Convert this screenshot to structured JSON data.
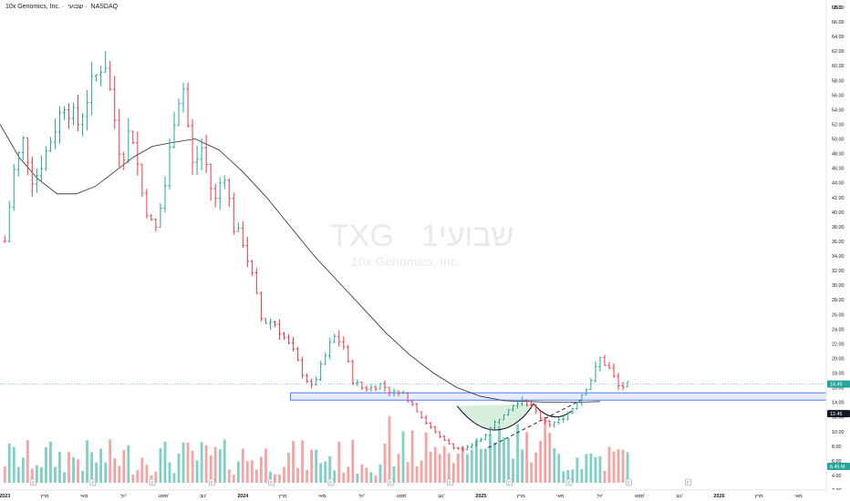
{
  "header": {
    "symbol_name": "10x Genomics, Inc.",
    "interval": "שבועי",
    "exchange": "NASDAQ"
  },
  "watermark": {
    "ticker": "TXG",
    "interval": "שבועי1",
    "company": "10x Genomics, Inc."
  },
  "axis": {
    "currency": "USD"
  },
  "colors": {
    "up": "#26a69a",
    "down": "#f23645",
    "vol_up": "#7fcfc5",
    "vol_down": "#f6a3a3",
    "ma": "#2b2b2b",
    "zone": "#2962ff",
    "pattern": "#8fd19e"
  },
  "chart_data": {
    "type": "ohlc",
    "yscale": "linear",
    "ylim": [
      2,
      68
    ],
    "y_ticks": [
      2,
      4,
      6,
      8,
      10,
      12,
      14,
      16,
      18,
      20,
      22,
      24,
      26,
      28,
      30,
      32,
      34,
      36,
      38,
      40,
      42,
      44,
      46,
      48,
      50,
      52,
      54,
      56,
      58,
      60,
      62,
      64,
      66,
      68
    ],
    "x_ticks": [
      {
        "label": "2023",
        "x": 2023.0
      },
      {
        "label": "מרץ",
        "x": 2023.167
      },
      {
        "label": "מאי",
        "x": 2023.333
      },
      {
        "label": "יול'",
        "x": 2023.5
      },
      {
        "label": "ספט'",
        "x": 2023.667
      },
      {
        "label": "נוב'",
        "x": 2023.833
      },
      {
        "label": "2024",
        "x": 2024.0
      },
      {
        "label": "מרץ",
        "x": 2024.167
      },
      {
        "label": "מאי",
        "x": 2024.333
      },
      {
        "label": "יול'",
        "x": 2024.5
      },
      {
        "label": "ספט'",
        "x": 2024.667
      },
      {
        "label": "נוב'",
        "x": 2024.833
      },
      {
        "label": "2025",
        "x": 2025.0
      },
      {
        "label": "מרץ",
        "x": 2025.167
      },
      {
        "label": "מאי",
        "x": 2025.333
      },
      {
        "label": "יול'",
        "x": 2025.5
      },
      {
        "label": "ספט'",
        "x": 2025.667
      },
      {
        "label": "נוב'",
        "x": 2025.833
      },
      {
        "label": "2026",
        "x": 2026.0
      },
      {
        "label": "מרץ",
        "x": 2026.167
      },
      {
        "label": "מאי",
        "x": 2026.333
      }
    ],
    "xlim": [
      2022.98,
      2026.45
    ],
    "price_anchors": [
      [
        2023.0,
        36
      ],
      [
        2023.04,
        46
      ],
      [
        2023.08,
        50
      ],
      [
        2023.12,
        44
      ],
      [
        2023.17,
        48
      ],
      [
        2023.25,
        55
      ],
      [
        2023.31,
        52
      ],
      [
        2023.36,
        57
      ],
      [
        2023.42,
        61
      ],
      [
        2023.45,
        55
      ],
      [
        2023.49,
        47
      ],
      [
        2023.53,
        52
      ],
      [
        2023.58,
        42
      ],
      [
        2023.63,
        37
      ],
      [
        2023.67,
        43
      ],
      [
        2023.72,
        55
      ],
      [
        2023.75,
        57
      ],
      [
        2023.79,
        46
      ],
      [
        2023.83,
        49
      ],
      [
        2023.88,
        41
      ],
      [
        2023.92,
        46
      ],
      [
        2023.96,
        38
      ],
      [
        2024.0,
        36
      ],
      [
        2024.04,
        31
      ],
      [
        2024.08,
        25
      ],
      [
        2024.13,
        25
      ],
      [
        2024.17,
        23
      ],
      [
        2024.21,
        21
      ],
      [
        2024.25,
        18
      ],
      [
        2024.29,
        16
      ],
      [
        2024.33,
        19
      ],
      [
        2024.38,
        23
      ],
      [
        2024.42,
        22
      ],
      [
        2024.46,
        17
      ],
      [
        2024.5,
        16
      ],
      [
        2024.54,
        16
      ],
      [
        2024.58,
        16.5
      ],
      [
        2024.62,
        15.5
      ],
      [
        2024.67,
        15
      ],
      [
        2024.71,
        14
      ],
      [
        2024.75,
        12
      ],
      [
        2024.79,
        10.5
      ],
      [
        2024.83,
        9
      ],
      [
        2024.88,
        8
      ],
      [
        2024.92,
        7.5
      ],
      [
        2024.96,
        8
      ],
      [
        2025.0,
        9
      ],
      [
        2025.04,
        10.5
      ],
      [
        2025.08,
        12
      ],
      [
        2025.12,
        13.5
      ],
      [
        2025.17,
        14.5
      ],
      [
        2025.21,
        13.5
      ],
      [
        2025.25,
        12
      ],
      [
        2025.29,
        11
      ],
      [
        2025.33,
        11.5
      ],
      [
        2025.38,
        13
      ],
      [
        2025.42,
        15
      ],
      [
        2025.46,
        17
      ],
      [
        2025.5,
        20
      ],
      [
        2025.54,
        18.5
      ],
      [
        2025.58,
        16
      ],
      [
        2025.62,
        16.5
      ]
    ],
    "moving_average": {
      "period": 30,
      "points": [
        [
          2022.98,
          52
        ],
        [
          2023.06,
          47.5
        ],
        [
          2023.14,
          44.5
        ],
        [
          2023.22,
          42.5
        ],
        [
          2023.3,
          42.5
        ],
        [
          2023.38,
          43.5
        ],
        [
          2023.46,
          45.5
        ],
        [
          2023.54,
          47.5
        ],
        [
          2023.62,
          49
        ],
        [
          2023.7,
          49.5
        ],
        [
          2023.8,
          50
        ],
        [
          2023.9,
          48.5
        ],
        [
          2024.0,
          45.5
        ],
        [
          2024.1,
          42
        ],
        [
          2024.2,
          38
        ],
        [
          2024.3,
          34
        ],
        [
          2024.4,
          30.5
        ],
        [
          2024.5,
          27
        ],
        [
          2024.6,
          23.5
        ],
        [
          2024.7,
          20.5
        ],
        [
          2024.8,
          18
        ],
        [
          2024.9,
          16
        ],
        [
          2025.0,
          14.8
        ],
        [
          2025.1,
          14.2
        ],
        [
          2025.2,
          14.1
        ],
        [
          2025.3,
          14.0
        ],
        [
          2025.4,
          14.0
        ],
        [
          2025.5,
          14.1
        ]
      ]
    },
    "resistance_zone": {
      "low": 14.3,
      "high": 15.3,
      "x_start": 2024.2
    },
    "trendline_dashed": [
      [
        2025.03,
        7.8
      ],
      [
        2025.42,
        14.3
      ]
    ],
    "cup_curve": [
      [
        2024.9,
        13.5
      ],
      [
        2025.05,
        7.2
      ],
      [
        2025.18,
        11.5
      ],
      [
        2025.22,
        13.8
      ]
    ],
    "handle_curve": [
      [
        2025.22,
        13.8
      ],
      [
        2025.3,
        10.8
      ],
      [
        2025.38,
        12.8
      ]
    ],
    "price_labels": [
      {
        "value": 16.49,
        "text": "16.49",
        "bg": "#26a69a"
      },
      {
        "value": 12.45,
        "text": "12.45",
        "bg": "#131722"
      },
      {
        "value": 6.45,
        "text": "6.45 M",
        "bg": "#26a69a"
      }
    ]
  }
}
